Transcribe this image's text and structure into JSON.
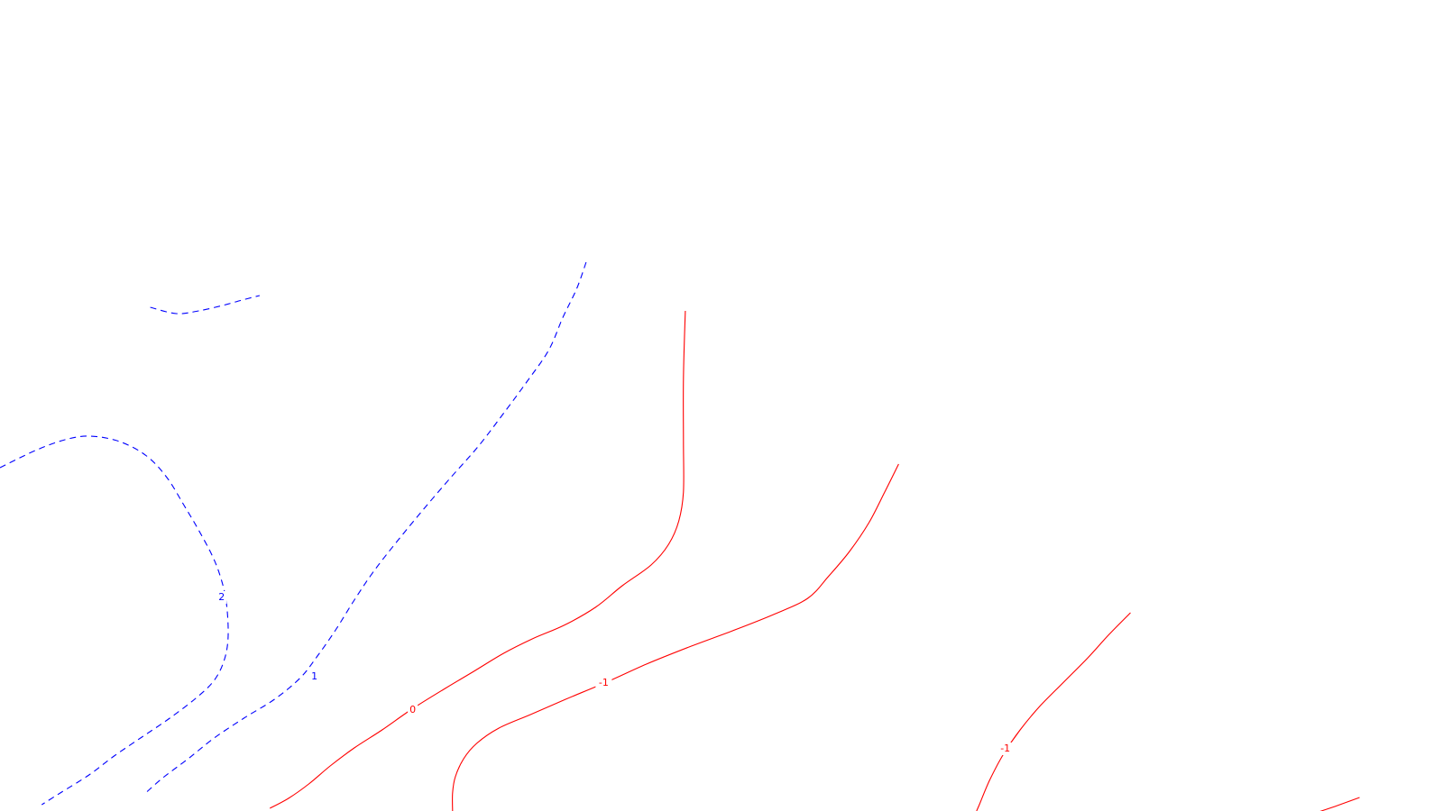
{
  "chart_data": {
    "type": "contour",
    "title": "",
    "xlabel": "",
    "ylabel": "",
    "grid": false,
    "legend": false,
    "colors": {
      "positive": "#0000ff",
      "zero": "#ff0000",
      "negative": "#ff0000",
      "background": "#ffffff"
    },
    "line_styles": {
      "positive": "dashed",
      "zero": "solid",
      "negative": "solid"
    },
    "contours": [
      {
        "id": "c-pos-1",
        "level": 1,
        "label": "1"
      },
      {
        "id": "c-pos-2-open",
        "level": 2,
        "label": "2"
      },
      {
        "id": "c-pos-2-short",
        "level": 2,
        "label": ""
      },
      {
        "id": "c-zero",
        "level": 0,
        "label": "0"
      },
      {
        "id": "c-neg1-a",
        "level": -1,
        "label": "-1"
      },
      {
        "id": "c-neg1-b",
        "level": -1,
        "label": "-1"
      },
      {
        "id": "c-neg1-c",
        "level": -1,
        "label": ""
      }
    ]
  }
}
